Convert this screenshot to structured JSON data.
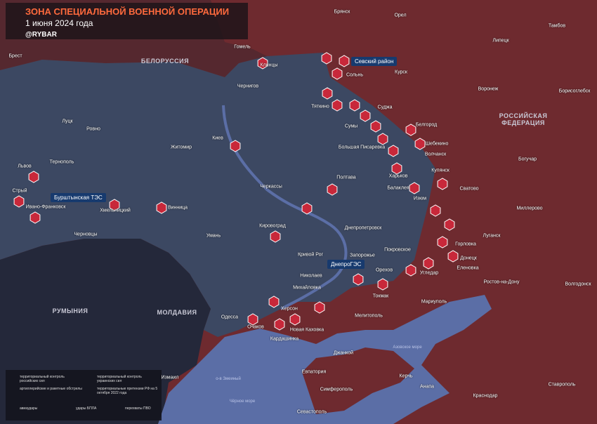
{
  "header": {
    "title": "ЗОНА СПЕЦИАЛЬНОЙ ВОЕННОЙ ОПЕРАЦИИ",
    "date": "1 июня 2024 года",
    "brand": "@RYBAR"
  },
  "countries": [
    "БЕЛОРУССИЯ",
    "РОССИЙСКАЯ ФЕДЕРАЦИЯ",
    "РУМЫНИЯ",
    "МОЛДАВИЯ"
  ],
  "callouts": [
    "Севский район",
    "Бурштынская ТЭС",
    "ДнепроГЭС"
  ],
  "seas": [
    "Чёрное море",
    "Азовское море",
    "о-в Змеиный"
  ],
  "cities": [
    "Брянск",
    "Орел",
    "Тамбов",
    "Липецк",
    "Гомель",
    "Брест",
    "Клинцы",
    "Курск",
    "Сольнь",
    "Чернигов",
    "Воронеж",
    "Борисоглебск",
    "Тяткино",
    "Суджа",
    "Сумы",
    "Белгород",
    "Луцк",
    "Ровно",
    "Киев",
    "Житомир",
    "Большая Писаревка",
    "Шебекино",
    "Волчанск",
    "Львов",
    "Тернополь",
    "Харьков",
    "Богучар",
    "Купянск",
    "Полтава",
    "Балаклея",
    "Сватово",
    "Стрый",
    "Черкассы",
    "Изюм",
    "Хмельницкий",
    "Ивано-Франковск",
    "Винница",
    "Миллерово",
    "Черновцы",
    "Умань",
    "Кировоград",
    "Днепропетровск",
    "Луганск",
    "Горловка",
    "Донецк",
    "Покровское",
    "Кривой Рог",
    "Запорожье",
    "Еленовка",
    "Орехов",
    "Угледар",
    "Ростов-на-Дону",
    "Николаев",
    "Михайловка",
    "Волгодонск",
    "Токмак",
    "Мариуполь",
    "Херсон",
    "Мелитополь",
    "Одесса",
    "Очаков",
    "Новая Каховка",
    "Кардашинка",
    "Джанкой",
    "Евпатория",
    "Симферополь",
    "Керчь",
    "Анапа",
    "Краснодар",
    "Ставрополь",
    "Севастополь",
    "Измаил"
  ],
  "legend": [
    "территориальный контроль российских сил",
    "территориальный контроль украинских сил",
    "артиллерийские и ракетные обстрелы",
    "территориальные претензии РФ на 5 октября 2022 года",
    "авиаудары",
    "удары БПЛА",
    "перехваты ПВО"
  ]
}
